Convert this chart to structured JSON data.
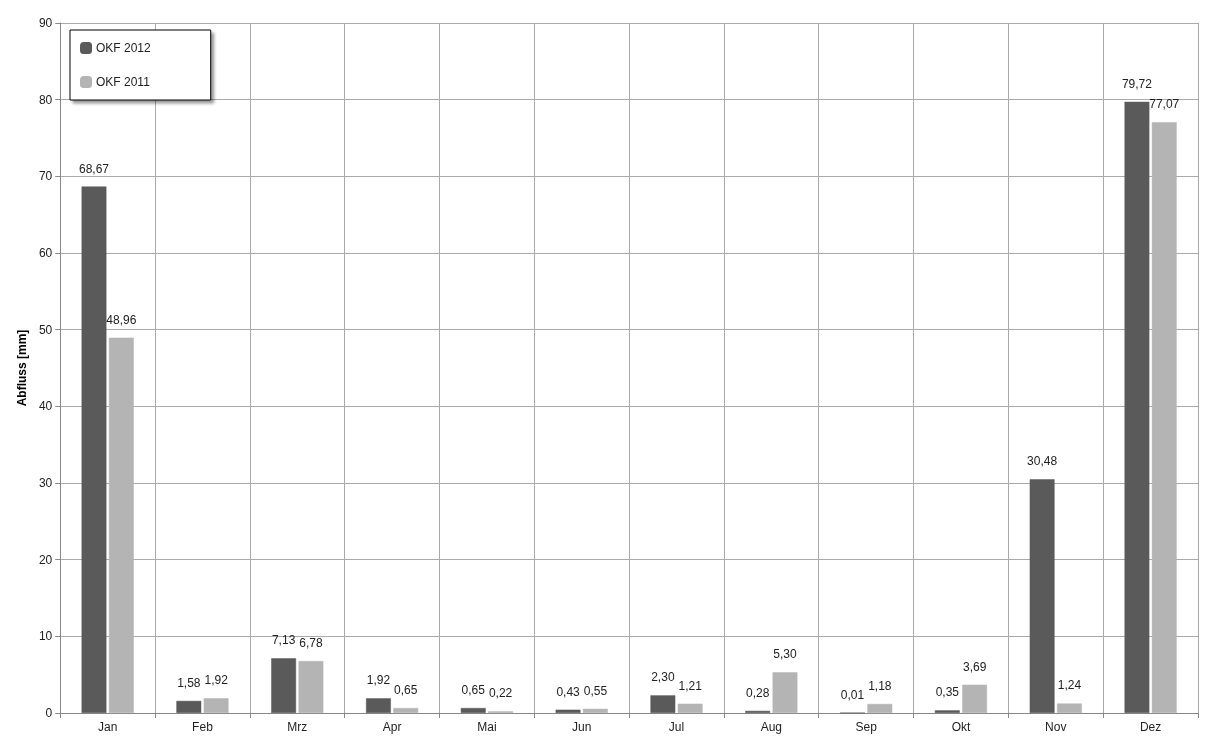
{
  "chart_data": {
    "type": "bar",
    "ylabel": "Abfluss [mm]",
    "categories": [
      "Jan",
      "Feb",
      "Mrz",
      "Apr",
      "Mai",
      "Jun",
      "Jul",
      "Aug",
      "Sep",
      "Okt",
      "Nov",
      "Dez"
    ],
    "series": [
      {
        "name": "OKF 2012",
        "color": "#5a5a5a",
        "values": [
          68.67,
          1.58,
          7.13,
          1.92,
          0.65,
          0.43,
          2.3,
          0.28,
          0.01,
          0.35,
          30.48,
          79.72
        ],
        "value_labels": [
          "68,67",
          "1,58",
          "7,13",
          "1,92",
          "0,65",
          "0,43",
          "2,30",
          "0,28",
          "0,01",
          "0,35",
          "30,48",
          "79,72"
        ]
      },
      {
        "name": "OKF 2011",
        "color": "#b4b4b4",
        "values": [
          48.96,
          1.92,
          6.78,
          0.65,
          0.22,
          0.55,
          1.21,
          5.3,
          1.18,
          3.69,
          1.24,
          77.07
        ],
        "value_labels": [
          "48,96",
          "1,92",
          "6,78",
          "0,65",
          "0,22",
          "0,55",
          "1,21",
          "5,30",
          "1,18",
          "3,69",
          "1,24",
          "77,07"
        ]
      }
    ],
    "ylim": [
      0,
      90
    ],
    "yticks": [
      0,
      10,
      20,
      30,
      40,
      50,
      60,
      70,
      80,
      90
    ],
    "grid": true,
    "legend": "top left"
  }
}
